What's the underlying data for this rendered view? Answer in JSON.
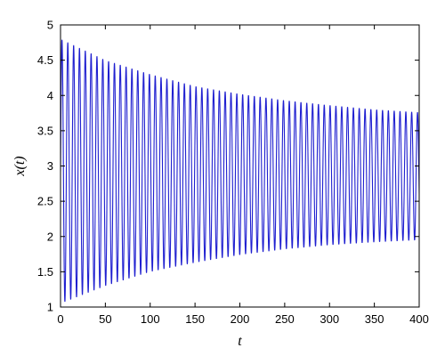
{
  "chart_data": {
    "type": "line",
    "title": "",
    "xlabel": "t",
    "ylabel": "x(t)",
    "xlim": [
      0,
      400
    ],
    "ylim": [
      1,
      5
    ],
    "x_ticks": [
      0,
      50,
      100,
      150,
      200,
      250,
      300,
      350,
      400
    ],
    "y_ticks": [
      1,
      1.5,
      2,
      2.5,
      3,
      3.5,
      4,
      4.5,
      5
    ],
    "x_tick_labels": [
      "0",
      "50",
      "100",
      "150",
      "200",
      "250",
      "300",
      "350",
      "400"
    ],
    "y_tick_labels": [
      "1",
      "1.5",
      "2",
      "2.5",
      "3",
      "3.5",
      "4",
      "4.5",
      "5"
    ],
    "grid": false,
    "legend": "none",
    "line_color": "#1f1fd0",
    "series": [
      {
        "oscillation_period": 6.5,
        "t_range": [
          0,
          400
        ],
        "upper_envelope": [
          {
            "t": 0,
            "x": 4.8
          },
          {
            "t": 50,
            "x": 4.5
          },
          {
            "t": 100,
            "x": 4.3
          },
          {
            "t": 150,
            "x": 4.13
          },
          {
            "t": 200,
            "x": 4.02
          },
          {
            "t": 250,
            "x": 3.93
          },
          {
            "t": 300,
            "x": 3.86
          },
          {
            "t": 350,
            "x": 3.8
          },
          {
            "t": 400,
            "x": 3.76
          }
        ],
        "lower_envelope": [
          {
            "t": 0,
            "x": 1.05
          },
          {
            "t": 50,
            "x": 1.3
          },
          {
            "t": 100,
            "x": 1.5
          },
          {
            "t": 150,
            "x": 1.63
          },
          {
            "t": 200,
            "x": 1.74
          },
          {
            "t": 250,
            "x": 1.82
          },
          {
            "t": 300,
            "x": 1.88
          },
          {
            "t": 350,
            "x": 1.92
          },
          {
            "t": 400,
            "x": 1.95
          }
        ]
      }
    ]
  }
}
